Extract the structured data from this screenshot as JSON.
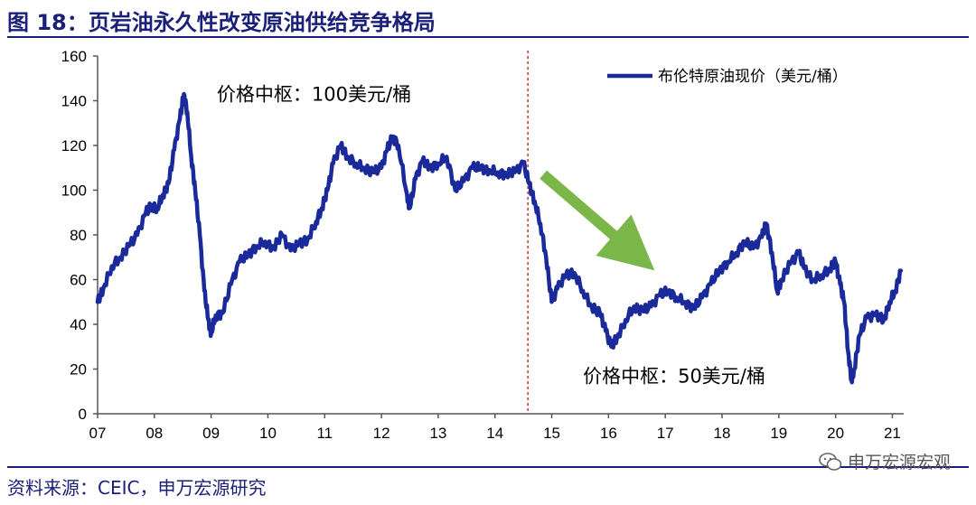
{
  "figure": {
    "title": "图 18：页岩油永久性改变原油供给竞争格局",
    "source": "资料来源：CEIC，申万宏源研究",
    "watermark": "申万宏源宏观"
  },
  "chart_data": {
    "type": "line",
    "title": "图 18：页岩油永久性改变原油供给竞争格局",
    "xlabel": "",
    "ylabel": "",
    "x_ticks": [
      "07",
      "08",
      "09",
      "10",
      "11",
      "12",
      "13",
      "14",
      "15",
      "16",
      "17",
      "18",
      "19",
      "20",
      "21"
    ],
    "xlim": [
      2007,
      2021.2
    ],
    "ylim": [
      0,
      160
    ],
    "y_ticks": [
      0,
      20,
      40,
      60,
      80,
      100,
      120,
      140,
      160
    ],
    "grid": false,
    "legend_position": "top-right",
    "line_color": "#1a2a9a",
    "series": [
      {
        "name": "布伦特原油现价（美元/桶）",
        "points": [
          [
            2007.0,
            50
          ],
          [
            2007.1,
            56
          ],
          [
            2007.25,
            66
          ],
          [
            2007.4,
            70
          ],
          [
            2007.55,
            75
          ],
          [
            2007.7,
            80
          ],
          [
            2007.85,
            90
          ],
          [
            2007.95,
            93
          ],
          [
            2008.05,
            92
          ],
          [
            2008.15,
            98
          ],
          [
            2008.25,
            103
          ],
          [
            2008.35,
            118
          ],
          [
            2008.45,
            132
          ],
          [
            2008.52,
            143
          ],
          [
            2008.58,
            135
          ],
          [
            2008.65,
            115
          ],
          [
            2008.72,
            100
          ],
          [
            2008.8,
            80
          ],
          [
            2008.88,
            55
          ],
          [
            2008.95,
            42
          ],
          [
            2009.0,
            36
          ],
          [
            2009.08,
            44
          ],
          [
            2009.2,
            45
          ],
          [
            2009.35,
            58
          ],
          [
            2009.5,
            68
          ],
          [
            2009.65,
            71
          ],
          [
            2009.8,
            75
          ],
          [
            2009.95,
            77
          ],
          [
            2010.1,
            74
          ],
          [
            2010.25,
            80
          ],
          [
            2010.4,
            73
          ],
          [
            2010.55,
            76
          ],
          [
            2010.7,
            78
          ],
          [
            2010.85,
            86
          ],
          [
            2010.95,
            92
          ],
          [
            2011.05,
            100
          ],
          [
            2011.15,
            112
          ],
          [
            2011.28,
            120
          ],
          [
            2011.4,
            115
          ],
          [
            2011.55,
            112
          ],
          [
            2011.7,
            110
          ],
          [
            2011.85,
            108
          ],
          [
            2012.0,
            110
          ],
          [
            2012.1,
            118
          ],
          [
            2012.2,
            124
          ],
          [
            2012.3,
            120
          ],
          [
            2012.45,
            98
          ],
          [
            2012.5,
            92
          ],
          [
            2012.6,
            105
          ],
          [
            2012.72,
            113
          ],
          [
            2012.85,
            110
          ],
          [
            2013.0,
            112
          ],
          [
            2013.15,
            115
          ],
          [
            2013.3,
            100
          ],
          [
            2013.45,
            104
          ],
          [
            2013.6,
            110
          ],
          [
            2013.75,
            110
          ],
          [
            2013.9,
            109
          ],
          [
            2014.05,
            108
          ],
          [
            2014.2,
            107
          ],
          [
            2014.35,
            108
          ],
          [
            2014.5,
            112
          ],
          [
            2014.6,
            103
          ],
          [
            2014.7,
            95
          ],
          [
            2014.8,
            85
          ],
          [
            2014.9,
            70
          ],
          [
            2015.0,
            50
          ],
          [
            2015.1,
            56
          ],
          [
            2015.25,
            62
          ],
          [
            2015.4,
            63
          ],
          [
            2015.55,
            55
          ],
          [
            2015.7,
            48
          ],
          [
            2015.85,
            45
          ],
          [
            2015.95,
            37
          ],
          [
            2016.05,
            30
          ],
          [
            2016.15,
            34
          ],
          [
            2016.3,
            42
          ],
          [
            2016.45,
            48
          ],
          [
            2016.6,
            46
          ],
          [
            2016.75,
            48
          ],
          [
            2016.9,
            53
          ],
          [
            2017.05,
            55
          ],
          [
            2017.2,
            52
          ],
          [
            2017.35,
            50
          ],
          [
            2017.5,
            47
          ],
          [
            2017.65,
            52
          ],
          [
            2017.8,
            58
          ],
          [
            2017.95,
            64
          ],
          [
            2018.1,
            68
          ],
          [
            2018.25,
            72
          ],
          [
            2018.4,
            77
          ],
          [
            2018.55,
            74
          ],
          [
            2018.7,
            79
          ],
          [
            2018.78,
            85
          ],
          [
            2018.88,
            72
          ],
          [
            2018.97,
            55
          ],
          [
            2019.05,
            60
          ],
          [
            2019.2,
            67
          ],
          [
            2019.35,
            72
          ],
          [
            2019.45,
            65
          ],
          [
            2019.6,
            60
          ],
          [
            2019.75,
            62
          ],
          [
            2019.9,
            65
          ],
          [
            2020.0,
            68
          ],
          [
            2020.08,
            58
          ],
          [
            2020.15,
            50
          ],
          [
            2020.22,
            28
          ],
          [
            2020.28,
            15
          ],
          [
            2020.33,
            20
          ],
          [
            2020.42,
            35
          ],
          [
            2020.55,
            43
          ],
          [
            2020.7,
            44
          ],
          [
            2020.85,
            42
          ],
          [
            2020.95,
            50
          ],
          [
            2021.05,
            55
          ],
          [
            2021.15,
            64
          ]
        ]
      }
    ],
    "vertical_reference_line": {
      "x": 2014.58,
      "style": "dashed",
      "color": "#c0392b"
    },
    "trend_arrow": {
      "from": [
        2014.85,
        107
      ],
      "to": [
        2016.45,
        72
      ],
      "color": "#7ab648"
    },
    "annotations": [
      {
        "text": "价格中枢：100美元/桶",
        "anchor": [
          2009.1,
          140
        ]
      },
      {
        "text": "价格中枢：50美元/桶",
        "anchor": [
          2015.55,
          14
        ]
      }
    ]
  }
}
